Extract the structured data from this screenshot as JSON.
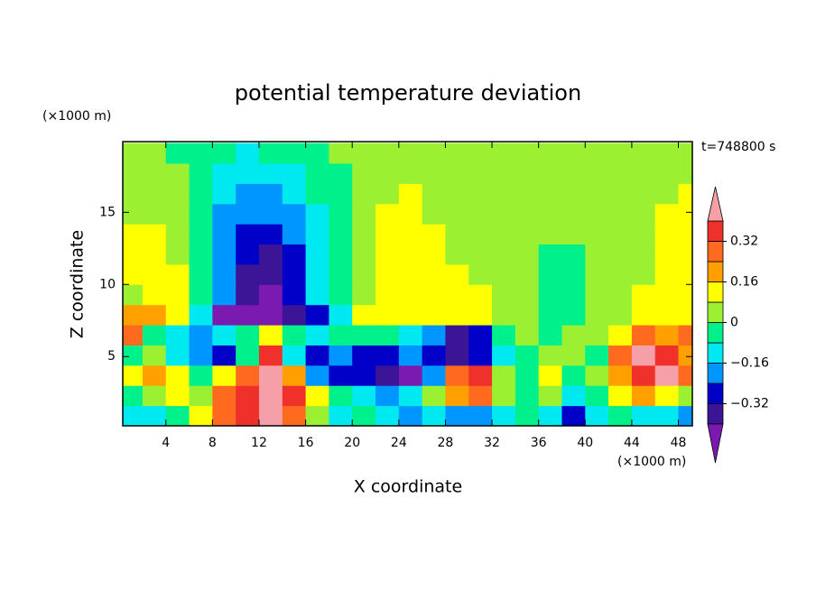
{
  "chart_data": {
    "type": "contour",
    "title": "potential temperature deviation",
    "x_label": "X coordinate",
    "y_label": "Z coordinate",
    "x_unit": "(×1000 m)",
    "y_unit": "(×1000 m)",
    "annotation": "t=748800 s",
    "xlim": [
      0.3,
      49.2
    ],
    "ylim": [
      0.2,
      19.9
    ],
    "xticks": [
      4,
      8,
      12,
      16,
      20,
      24,
      28,
      32,
      36,
      40,
      44,
      48
    ],
    "yticks": [
      5,
      10,
      15
    ],
    "levels": [
      -0.4,
      -0.32,
      -0.24,
      -0.16,
      -0.08,
      0,
      0.08,
      0.16,
      0.24,
      0.32,
      0.4
    ],
    "colors": [
      "#7a1ab0",
      "#3c1496",
      "#0000c8",
      "#0096ff",
      "#00e8f0",
      "#00f08c",
      "#9cf032",
      "#ffff00",
      "#ffa000",
      "#ff6a1e",
      "#f0302a",
      "#f5a0a8"
    ],
    "colorbar_ticks": [
      0.32,
      0.16,
      0,
      {
        "value": -0.16,
        "label": "−0.16"
      },
      {
        "value": -0.32,
        "label": "−0.32"
      }
    ],
    "x": [
      1,
      3,
      5,
      7,
      9,
      11,
      13,
      15,
      17,
      19,
      21,
      23,
      25,
      27,
      29,
      31,
      33,
      35,
      37,
      39,
      41,
      43,
      45,
      47,
      49
    ],
    "y": [
      0.9,
      2.3,
      3.7,
      5.1,
      6.5,
      7.9,
      9.3,
      10.7,
      12.1,
      13.5,
      14.9,
      16.3,
      17.7,
      19.1
    ],
    "z": [
      [
        -0.12,
        -0.12,
        -0.04,
        0.12,
        0.28,
        0.36,
        0.45,
        0.28,
        0.04,
        -0.12,
        -0.04,
        -0.12,
        -0.2,
        -0.12,
        -0.2,
        -0.2,
        -0.12,
        -0.04,
        -0.12,
        -0.28,
        -0.12,
        -0.04,
        -0.12,
        -0.12,
        -0.2
      ],
      [
        -0.04,
        0.04,
        0.12,
        0.04,
        0.28,
        0.36,
        0.45,
        0.36,
        0.12,
        -0.04,
        -0.12,
        -0.2,
        -0.12,
        0.04,
        0.2,
        0.28,
        0.04,
        -0.04,
        0.04,
        -0.12,
        -0.04,
        0.12,
        0.2,
        0.12,
        0.04
      ],
      [
        0.12,
        0.2,
        0.12,
        -0.04,
        0.12,
        0.28,
        0.45,
        0.2,
        -0.2,
        -0.28,
        -0.28,
        -0.36,
        -0.45,
        -0.2,
        0.28,
        0.36,
        0.04,
        -0.04,
        0.12,
        -0.04,
        0.04,
        0.2,
        0.36,
        0.45,
        0.28
      ],
      [
        -0.04,
        0.04,
        -0.12,
        -0.2,
        -0.28,
        -0.04,
        0.36,
        -0.12,
        -0.28,
        -0.2,
        -0.28,
        -0.28,
        -0.2,
        -0.28,
        -0.36,
        -0.28,
        -0.12,
        -0.04,
        0.04,
        0.04,
        -0.04,
        0.28,
        0.45,
        0.36,
        0.2
      ],
      [
        0.28,
        -0.04,
        -0.12,
        -0.2,
        -0.12,
        -0.04,
        0.12,
        -0.04,
        -0.12,
        -0.04,
        -0.04,
        -0.04,
        -0.12,
        -0.2,
        -0.36,
        -0.28,
        -0.04,
        0.04,
        -0.04,
        0.04,
        0.04,
        0.12,
        0.28,
        0.2,
        0.28
      ],
      [
        0.2,
        0.2,
        0.12,
        -0.12,
        -0.45,
        -0.45,
        -0.45,
        -0.36,
        -0.28,
        -0.12,
        0.12,
        0.12,
        0.12,
        0.12,
        0.12,
        0.12,
        0.04,
        0.04,
        -0.04,
        -0.04,
        0.04,
        0.04,
        0.12,
        0.12,
        0.12
      ],
      [
        0.04,
        0.12,
        0.12,
        -0.04,
        -0.2,
        -0.36,
        -0.45,
        -0.28,
        -0.12,
        -0.04,
        0.04,
        0.12,
        0.12,
        0.12,
        0.12,
        0.12,
        0.04,
        0.04,
        -0.04,
        -0.04,
        0.04,
        0.04,
        0.12,
        0.12,
        0.12
      ],
      [
        0.12,
        0.12,
        0.12,
        -0.04,
        -0.2,
        -0.36,
        -0.36,
        -0.28,
        -0.12,
        -0.04,
        0.04,
        0.12,
        0.12,
        0.12,
        0.12,
        0.04,
        0.04,
        0.04,
        -0.04,
        -0.04,
        0.04,
        0.04,
        0.04,
        0.12,
        0.12
      ],
      [
        0.12,
        0.12,
        0.04,
        -0.04,
        -0.2,
        -0.28,
        -0.36,
        -0.28,
        -0.12,
        -0.04,
        0.04,
        0.12,
        0.12,
        0.12,
        0.04,
        0.04,
        0.04,
        0.04,
        -0.04,
        -0.04,
        0.04,
        0.04,
        0.04,
        0.12,
        0.12
      ],
      [
        0.12,
        0.12,
        0.04,
        -0.04,
        -0.2,
        -0.28,
        -0.28,
        -0.2,
        -0.12,
        -0.04,
        0.04,
        0.12,
        0.12,
        0.12,
        0.04,
        0.04,
        0.04,
        0.04,
        0.04,
        0.04,
        0.04,
        0.04,
        0.04,
        0.12,
        0.12
      ],
      [
        0.04,
        0.04,
        0.04,
        -0.04,
        -0.2,
        -0.2,
        -0.2,
        -0.2,
        -0.12,
        -0.04,
        0.04,
        0.12,
        0.12,
        0.04,
        0.04,
        0.04,
        0.04,
        0.04,
        0.04,
        0.04,
        0.04,
        0.04,
        0.04,
        0.12,
        0.12
      ],
      [
        0.04,
        0.04,
        0.04,
        -0.04,
        -0.12,
        -0.2,
        -0.2,
        -0.12,
        -0.04,
        -0.04,
        0.04,
        0.04,
        0.12,
        0.04,
        0.04,
        0.04,
        0.04,
        0.04,
        0.04,
        0.04,
        0.04,
        0.04,
        0.04,
        0.04,
        0.12
      ],
      [
        0.04,
        0.04,
        0.04,
        -0.04,
        -0.12,
        -0.12,
        -0.12,
        -0.12,
        -0.04,
        -0.04,
        0.04,
        0.04,
        0.04,
        0.04,
        0.04,
        0.04,
        0.04,
        0.04,
        0.04,
        0.04,
        0.04,
        0.04,
        0.04,
        0.04,
        0.04
      ],
      [
        0.04,
        0.04,
        -0.04,
        -0.04,
        -0.04,
        -0.12,
        -0.04,
        -0.04,
        -0.04,
        0.04,
        0.04,
        0.04,
        0.04,
        0.04,
        0.04,
        0.04,
        0.04,
        0.04,
        0.04,
        0.04,
        0.04,
        0.04,
        0.04,
        0.04,
        0.04
      ]
    ]
  }
}
